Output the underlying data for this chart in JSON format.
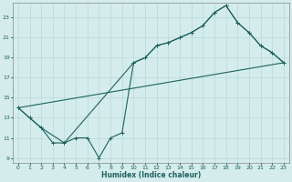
{
  "xlabel": "Humidex (Indice chaleur)",
  "xlim": [
    -0.5,
    23.5
  ],
  "ylim": [
    8.5,
    24.5
  ],
  "yticks": [
    9,
    11,
    13,
    15,
    17,
    19,
    21,
    23
  ],
  "xticks": [
    0,
    1,
    2,
    3,
    4,
    5,
    6,
    7,
    8,
    9,
    10,
    11,
    12,
    13,
    14,
    15,
    16,
    17,
    18,
    19,
    20,
    21,
    22,
    23
  ],
  "bg_color": "#d4ecec",
  "grid_color": "#b8d8d8",
  "line_color": "#206060",
  "line1_x": [
    0,
    1,
    2,
    3,
    4,
    5,
    6,
    7,
    8,
    9,
    10,
    11,
    12,
    13,
    14,
    15,
    16,
    17,
    18,
    19,
    20,
    21,
    22,
    23
  ],
  "line1_y": [
    14,
    13,
    12,
    10.5,
    10.5,
    11,
    11,
    9,
    11,
    11.5,
    18.5,
    19.0,
    20.2,
    20.5,
    21.0,
    21.5,
    22.2,
    23.5,
    24.2,
    22.5,
    21.5,
    20.2,
    19.5,
    18.5
  ],
  "line2_x": [
    0,
    1,
    2,
    4,
    10,
    11,
    12,
    13,
    14,
    15,
    16,
    17,
    18,
    19,
    20,
    21,
    22,
    23
  ],
  "line2_y": [
    14,
    13,
    12,
    10.5,
    18.5,
    19.0,
    20.2,
    20.5,
    21.0,
    21.5,
    22.2,
    23.5,
    24.2,
    22.5,
    21.5,
    20.2,
    19.5,
    18.5
  ],
  "line3_x": [
    0,
    23
  ],
  "line3_y": [
    14,
    18.5
  ]
}
